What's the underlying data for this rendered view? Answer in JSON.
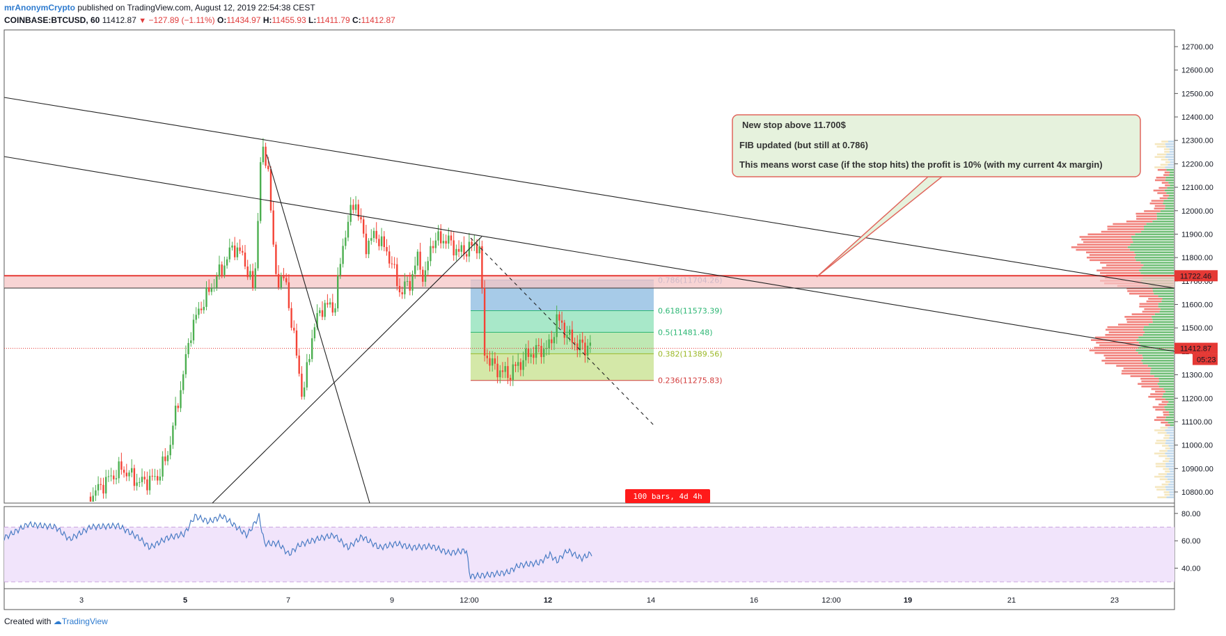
{
  "header": {
    "author": "mrAnonymCrypto",
    "published": "published on TradingView.com, August 12, 2019 22:54:38 CEST",
    "symbol": "COINBASE:BTCUSD, 60",
    "last": "11412.87",
    "change": "−127.89 (−1.11%)",
    "o_label": "O:",
    "o_value": "11434.97",
    "h_label": "H:",
    "h_value": "11455.93",
    "l_label": "L:",
    "l_value": "11411.79",
    "c_label": "C:",
    "c_value": "11412.87"
  },
  "footer": {
    "created_with": "Created with",
    "brand": "TradingView"
  },
  "colors": {
    "up": "#4caf50",
    "down": "#f44336",
    "rsi": "#4a7cc4",
    "fib_786": "#5b8fc9",
    "fib_618": "#2bb673",
    "fib_5": "#2bb673",
    "fib_382": "#9bb827",
    "fib_236": "#d23c3c"
  },
  "chart_data": {
    "type": "candlestick",
    "symbol": "COINBASE:BTCUSD",
    "interval": "60",
    "y_ticks": [
      10800,
      10900,
      11000,
      11100,
      11200,
      11300,
      11400,
      11500,
      11600,
      11700,
      11800,
      11900,
      12000,
      12100,
      12200,
      12300,
      12400,
      12500,
      12600,
      12700
    ],
    "y_tick_labels": [
      "10800.00",
      "10900.00",
      "11000.00",
      "11100.00",
      "11200.00",
      "11300.00",
      "11400.00",
      "11500.00",
      "11600.00",
      "11700.00",
      "11800.00",
      "11900.00",
      "12000.00",
      "12100.00",
      "12200.00",
      "12300.00",
      "12400.00",
      "12500.00",
      "12600.00",
      "12700.00"
    ],
    "ylim": [
      10750,
      12770
    ],
    "x_ticks": [
      "3",
      "5",
      "7",
      "9",
      "12:00",
      "12",
      "14",
      "16",
      "12:00",
      "19",
      "21",
      "23"
    ],
    "bold_x_ticks": [
      "5",
      "12",
      "19"
    ],
    "price_tags": [
      {
        "label": "11722.46",
        "value": 11722.46,
        "color": "#e53935"
      },
      {
        "label": "11412.87",
        "value": 11412.87,
        "color": "#e53935"
      },
      {
        "label": "05:23",
        "color": "#e53935"
      }
    ],
    "fib_levels": [
      {
        "ratio": "0.786",
        "price": "11704.26",
        "value": 11704.26
      },
      {
        "ratio": "0.618",
        "price": "11573.39",
        "value": 11573.39
      },
      {
        "ratio": "0.5",
        "price": "11481.48",
        "value": 11481.48
      },
      {
        "ratio": "0.382",
        "price": "11389.56",
        "value": 11389.56
      },
      {
        "ratio": "0.236",
        "price": "11275.83",
        "value": 11275.83
      }
    ],
    "horizontal_level": 11722.46,
    "last_price": 11412.87,
    "note_lines": [
      "New stop above 11.700$",
      "FIB updated (but still at 0.786)",
      "This means worst case (if the stop hits)  the profit is 10% (with my current 4x margin)"
    ],
    "bars_label": "100 bars, 4d 4h",
    "rsi": {
      "y_ticks": [
        40,
        60,
        80
      ],
      "y_tick_labels": [
        "40.00",
        "60.00",
        "80.00"
      ],
      "band": [
        30,
        70
      ],
      "ylim": [
        25,
        85
      ]
    }
  }
}
